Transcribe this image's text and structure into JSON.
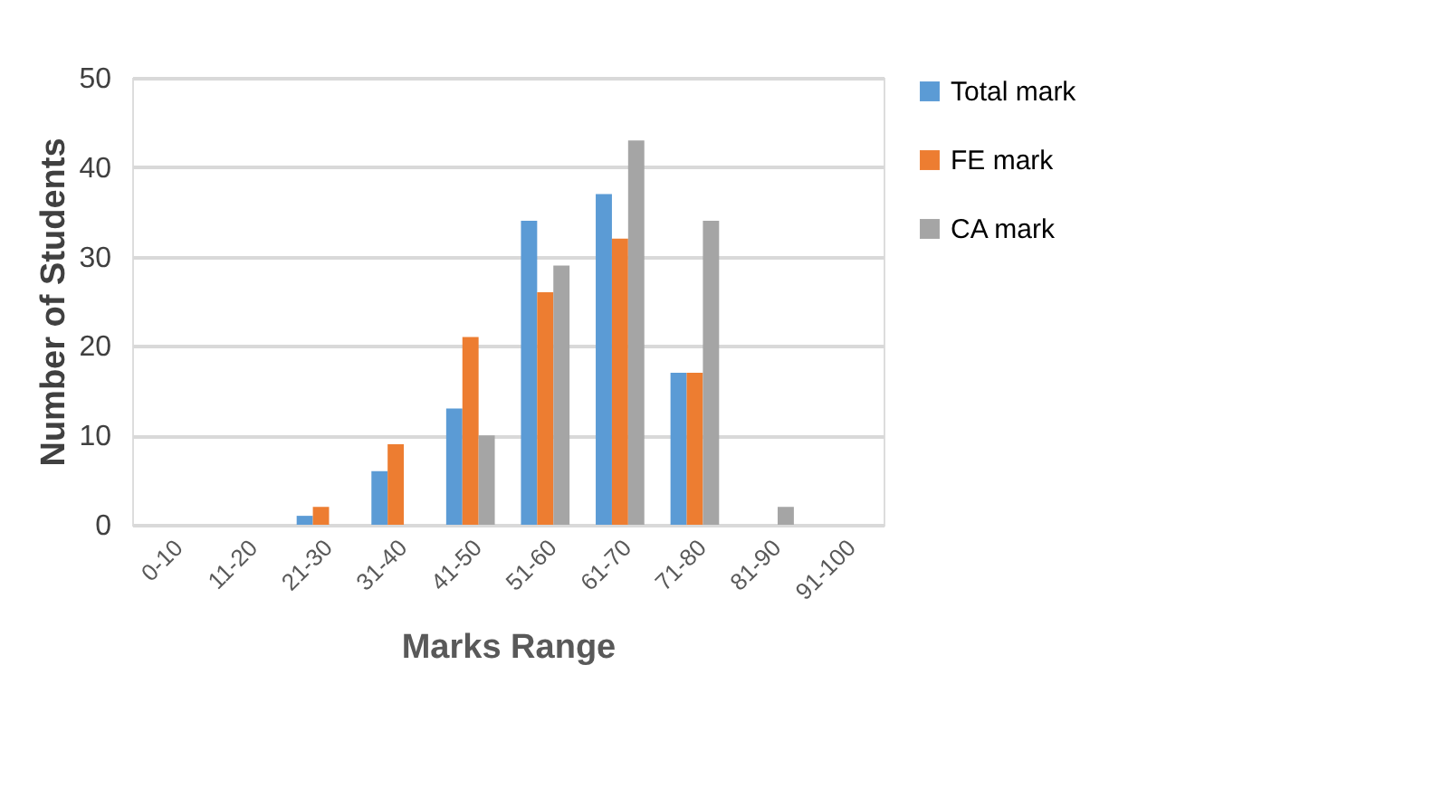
{
  "chart_data": {
    "type": "bar",
    "xlabel": "Marks Range",
    "ylabel": "Number of Students",
    "categories": [
      "0-10",
      "11-20",
      "21-30",
      "31-40",
      "41-50",
      "51-60",
      "61-70",
      "71-80",
      "81-90",
      "91-100"
    ],
    "series": [
      {
        "name": "Total mark",
        "color": "#5b9bd5",
        "values": [
          0,
          0,
          1,
          6,
          13,
          34,
          37,
          17,
          0,
          0
        ]
      },
      {
        "name": "FE mark",
        "color": "#ed7d31",
        "values": [
          0,
          0,
          2,
          9,
          21,
          26,
          32,
          17,
          0,
          0
        ]
      },
      {
        "name": "CA mark",
        "color": "#a5a5a5",
        "values": [
          0,
          0,
          0,
          0,
          10,
          29,
          43,
          34,
          2,
          0
        ]
      }
    ],
    "ylim": [
      0,
      50
    ],
    "yticks": [
      0,
      10,
      20,
      30,
      40,
      50
    ],
    "grid": "y",
    "legend": "right"
  }
}
